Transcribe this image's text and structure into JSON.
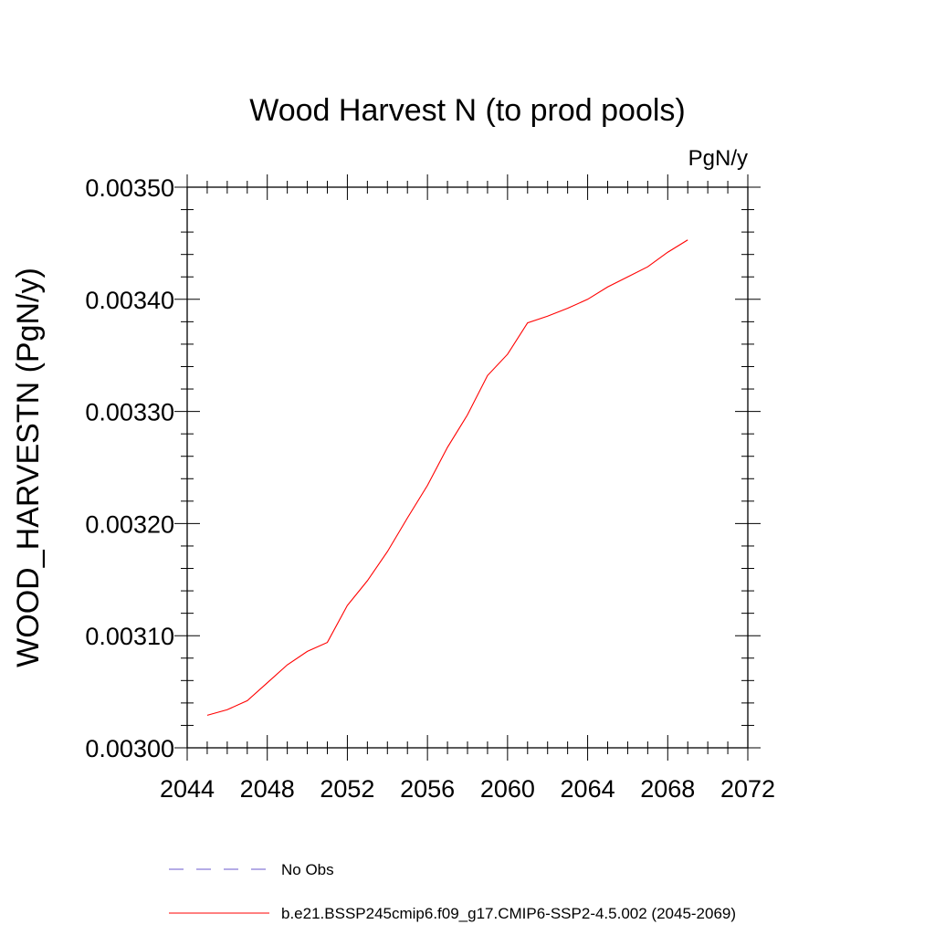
{
  "chart_data": {
    "type": "line",
    "title": "Wood Harvest N (to prod pools)",
    "units": "PgN/y",
    "ylabel": "WOOD_HARVESTN  (PgN/y)",
    "xlabel": "",
    "xlim": [
      2044,
      2072
    ],
    "ylim": [
      0.003,
      0.0035
    ],
    "xticks": [
      2044,
      2048,
      2052,
      2056,
      2060,
      2064,
      2068,
      2072
    ],
    "xtick_labels": [
      "2044",
      "2048",
      "2052",
      "2056",
      "2060",
      "2064",
      "2068",
      "2072"
    ],
    "yticks": [
      0.003,
      0.0031,
      0.0032,
      0.0033,
      0.0034,
      0.0035
    ],
    "ytick_labels": [
      "0.00300",
      "0.00310",
      "0.00320",
      "0.00330",
      "0.00340",
      "0.00350"
    ],
    "grid": false,
    "legend_position": "bottom",
    "series": [
      {
        "name": "b.e21.BSSP245cmip6.f09_g17.CMIP6-SSP2-4.5.002 (2045-2069)",
        "color": "#ff0000",
        "dash": "solid",
        "x": [
          2045,
          2046,
          2047,
          2048,
          2049,
          2050,
          2051,
          2052,
          2053,
          2054,
          2055,
          2056,
          2057,
          2058,
          2059,
          2060,
          2061,
          2062,
          2063,
          2064,
          2065,
          2066,
          2067,
          2068,
          2069
        ],
        "y": [
          0.003029,
          0.003034,
          0.003042,
          0.003058,
          0.003074,
          0.003086,
          0.003094,
          0.003127,
          0.003149,
          0.003175,
          0.003205,
          0.003234,
          0.003268,
          0.003297,
          0.003332,
          0.003351,
          0.003379,
          0.003385,
          0.003392,
          0.0034,
          0.003411,
          0.00342,
          0.003429,
          0.003442,
          0.003453
        ]
      },
      {
        "name": "No Obs",
        "color": "#6a5acd",
        "dash": "dashed",
        "x": [],
        "y": []
      }
    ]
  }
}
